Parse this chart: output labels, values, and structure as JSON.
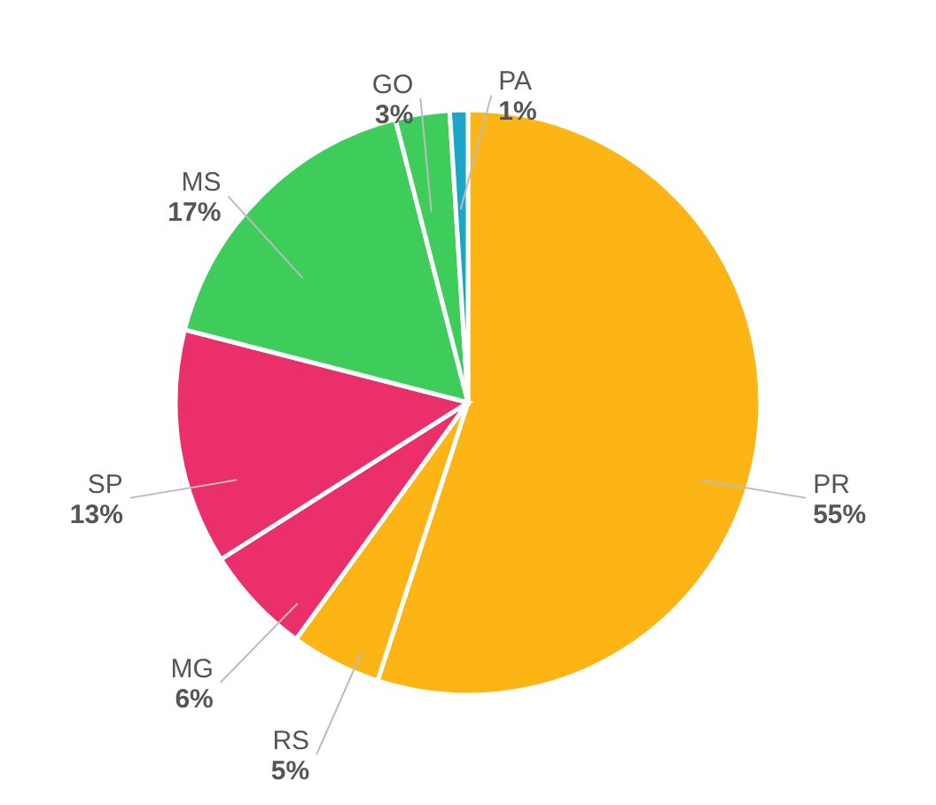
{
  "chart_data": {
    "type": "pie",
    "categories": [
      "PR",
      "RS",
      "MG",
      "SP",
      "MS",
      "GO",
      "PA"
    ],
    "values": [
      55,
      5,
      6,
      13,
      17,
      3,
      1
    ],
    "colors": [
      "#fdb515",
      "#fdb515",
      "#ea2f6b",
      "#ea2f6b",
      "#3ecc5a",
      "#3ecc5a",
      "#1ba6c9"
    ],
    "value_labels": [
      "55%",
      "5%",
      "6%",
      "13%",
      "17%",
      "3%",
      "1%"
    ]
  }
}
